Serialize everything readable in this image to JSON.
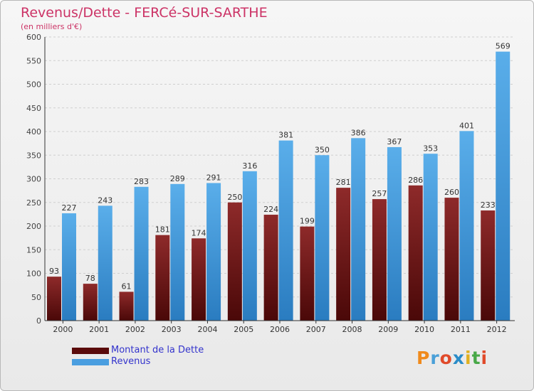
{
  "chart_title": "Revenus/Dette - FERCé-SUR-SARTHE",
  "chart_subtitle": "(en milliers d'€)",
  "legend": [
    {
      "label": "Montant de la Dette",
      "color": "#7a1c1c"
    },
    {
      "label": "Revenus",
      "color": "#4a9ee0"
    }
  ],
  "logo": {
    "text": "Proxiti",
    "colors": [
      "#f08a1c",
      "#4aa0d8",
      "#e04a2a",
      "#2a8cc8",
      "#e0b020",
      "#48a848",
      "#e04a2a"
    ]
  },
  "chart_data": {
    "type": "bar",
    "title": "Revenus/Dette - FERCé-SUR-SARTHE",
    "ylabel": "(en milliers d'€)",
    "ylim": [
      0,
      600
    ],
    "yticks": [
      0,
      50,
      100,
      150,
      200,
      250,
      300,
      350,
      400,
      450,
      500,
      550,
      600
    ],
    "grid": true,
    "legend_position": "bottom-left",
    "categories": [
      "2000",
      "2001",
      "2002",
      "2003",
      "2004",
      "2005",
      "2006",
      "2007",
      "2008",
      "2009",
      "2010",
      "2011",
      "2012"
    ],
    "series": [
      {
        "name": "Montant de la Dette",
        "color": "#7a1c1c",
        "values": [
          93,
          78,
          61,
          181,
          174,
          250,
          224,
          199,
          281,
          257,
          286,
          260,
          233
        ]
      },
      {
        "name": "Revenus",
        "color": "#4a9ee0",
        "values": [
          227,
          243,
          283,
          289,
          291,
          316,
          381,
          350,
          386,
          367,
          353,
          401,
          569
        ]
      }
    ]
  }
}
